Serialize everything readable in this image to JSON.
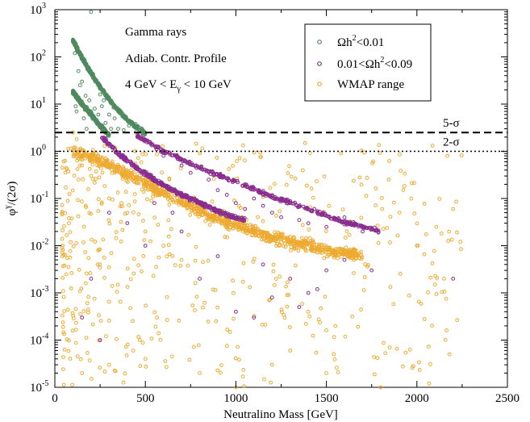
{
  "chart_data": {
    "type": "scatter",
    "xlabel": "Neutralino Mass  [GeV]",
    "ylabel": "φγ/(2σ)",
    "ylabel_base": "φ",
    "ylabel_sup": "γ",
    "ylabel_rest": "/(2σ)",
    "xlim": [
      0,
      2500
    ],
    "ylim": [
      1e-05,
      1000
    ],
    "yscale": "log",
    "x_ticks": [
      "0",
      "500",
      "1000",
      "1500",
      "2000",
      "2500"
    ],
    "x_tick_values": [
      0,
      500,
      1000,
      1500,
      2000,
      2500
    ],
    "y_ticks": [
      {
        "base": "10",
        "exp": "-5",
        "value": 1e-05
      },
      {
        "base": "10",
        "exp": "-4",
        "value": 0.0001
      },
      {
        "base": "10",
        "exp": "-3",
        "value": 0.001
      },
      {
        "base": "10",
        "exp": "-2",
        "value": 0.01
      },
      {
        "base": "10",
        "exp": "-1",
        "value": 0.1
      },
      {
        "base": "10",
        "exp": "0",
        "value": 1
      },
      {
        "base": "10",
        "exp": "1",
        "value": 10
      },
      {
        "base": "10",
        "exp": "2",
        "value": 100
      },
      {
        "base": "10",
        "exp": "3",
        "value": 1000
      }
    ],
    "grid": false,
    "legend_position": "top-right",
    "annotations": {
      "line1": "Gamma rays",
      "line2": "Adiab. Contr. Profile",
      "line3_pre": "4 GeV < E",
      "line3_sub": "γ",
      "line3_post": " < 10 GeV"
    },
    "reference_lines": [
      {
        "label": "5-σ",
        "y": 2.5,
        "style": "dashed"
      },
      {
        "label": "2-σ",
        "y": 1.0,
        "style": "dotted"
      }
    ],
    "series": [
      {
        "name": "Ωh2<0.01",
        "legend_pre": "Ωh",
        "legend_sup": "2",
        "legend_post": "<0.01",
        "color": "#4f8a5e",
        "bands": [
          {
            "x": [
              100,
              180,
              260,
              340,
              420,
              500
            ],
            "y": [
              220,
              60,
              20,
              8,
              4,
              2.4
            ]
          },
          {
            "x": [
              100,
              150,
              200,
              250,
              300
            ],
            "y": [
              18,
              10,
              6,
              3.5,
              2.2
            ]
          }
        ],
        "points": [
          [
            200,
            900
          ],
          [
            110,
            120
          ],
          [
            130,
            50
          ],
          [
            150,
            30
          ],
          [
            170,
            15
          ],
          [
            220,
            8
          ],
          [
            240,
            6
          ],
          [
            260,
            9
          ],
          [
            280,
            4
          ],
          [
            310,
            3
          ],
          [
            330,
            5
          ],
          [
            350,
            3
          ],
          [
            380,
            2.8
          ],
          [
            410,
            3.5
          ],
          [
            450,
            2.6
          ],
          [
            140,
            25
          ],
          [
            190,
            12
          ],
          [
            230,
            4
          ],
          [
            120,
            7
          ],
          [
            160,
            5
          ],
          [
            175,
            3
          ],
          [
            300,
            6
          ],
          [
            270,
            12
          ],
          [
            250,
            16
          ],
          [
            130,
            14
          ],
          [
            115,
            9
          ],
          [
            200,
            7
          ]
        ]
      },
      {
        "name": "0.01<Ωh2<0.09",
        "legend_pre": "0.01<Ωh",
        "legend_sup": "2",
        "legend_post": "<0.09",
        "color": "#8a2d8f",
        "bands": [
          {
            "x": [
              450,
              600,
              800,
              1000,
              1200,
              1400,
              1600,
              1800
            ],
            "y": [
              2.2,
              1.0,
              0.45,
              0.22,
              0.11,
              0.06,
              0.032,
              0.02
            ]
          },
          {
            "x": [
              260,
              350,
              450,
              550,
              650,
              800,
              950,
              1050
            ],
            "y": [
              2.0,
              0.9,
              0.45,
              0.25,
              0.15,
              0.08,
              0.045,
              0.035
            ]
          }
        ],
        "points": [
          [
            600,
            0.8
          ],
          [
            700,
            0.5
          ],
          [
            750,
            0.35
          ],
          [
            850,
            0.25
          ],
          [
            900,
            0.15
          ],
          [
            950,
            0.12
          ],
          [
            1000,
            0.08
          ],
          [
            1050,
            0.06
          ],
          [
            1100,
            0.1
          ],
          [
            1150,
            0.07
          ],
          [
            1200,
            0.05
          ],
          [
            1250,
            0.04
          ],
          [
            1300,
            0.08
          ],
          [
            1350,
            0.035
          ],
          [
            1400,
            0.03
          ],
          [
            1450,
            0.05
          ],
          [
            1500,
            0.025
          ],
          [
            1600,
            0.04
          ],
          [
            1700,
            0.02
          ],
          [
            1300,
            0.002
          ],
          [
            1350,
            0.0005
          ],
          [
            1400,
            0.001
          ],
          [
            1500,
            0.003
          ],
          [
            1450,
            0.0012
          ],
          [
            1200,
            0.0008
          ],
          [
            1100,
            0.0003
          ],
          [
            400,
            0.03
          ],
          [
            500,
            0.01
          ],
          [
            300,
            0.05
          ],
          [
            200,
            0.002
          ],
          [
            150,
            0.0003
          ],
          [
            250,
            0.0001
          ],
          [
            1600,
            0.005
          ],
          [
            1750,
            0.003
          ],
          [
            2200,
            0.002
          ],
          [
            800,
            0.002
          ],
          [
            900,
            0.006
          ],
          [
            1000,
            0.0004
          ],
          [
            700,
            0.02
          ],
          [
            650,
            0.05
          ],
          [
            550,
            0.08
          ],
          [
            1150,
            0.004
          ]
        ]
      },
      {
        "name": "WMAP range",
        "legend_pre": "WMAP range",
        "legend_sup": "",
        "legend_post": "",
        "color": "#eeaa30",
        "bands": [
          {
            "x": [
              100,
              200,
              300,
              400,
              500,
              600,
              700,
              800,
              900,
              1000,
              1100,
              1200,
              1300,
              1400,
              1500,
              1600,
              1700
            ],
            "y": [
              1.0,
              0.75,
              0.5,
              0.32,
              0.2,
              0.13,
              0.085,
              0.055,
              0.038,
              0.028,
              0.02,
              0.015,
              0.012,
              0.01,
              0.008,
              0.007,
              0.006
            ]
          }
        ],
        "scatter_region": {
          "x": [
            40,
            2250
          ],
          "y": [
            1e-05,
            1.5
          ]
        },
        "points": [
          [
            100,
            2.5
          ],
          [
            120,
            1.8
          ],
          [
            150,
            0.5
          ],
          [
            200,
            0.3
          ],
          [
            300,
            0.1
          ],
          [
            400,
            0.05
          ],
          [
            500,
            0.02
          ],
          [
            600,
            0.01
          ],
          [
            700,
            0.005
          ],
          [
            2200,
            0.06
          ],
          [
            2150,
            0.002
          ],
          [
            2000,
            0.01
          ],
          [
            2100,
            0.0015
          ],
          [
            1850,
            7e-05
          ],
          [
            2180,
            5e-05
          ],
          [
            1550,
            0.0002
          ],
          [
            1650,
            0.005
          ],
          [
            1400,
            0.0004
          ],
          [
            1300,
            6e-05
          ],
          [
            150,
            2e-05
          ],
          [
            300,
            3e-05
          ],
          [
            500,
            4e-05
          ],
          [
            800,
            2e-05
          ],
          [
            1000,
            1e-05
          ],
          [
            1200,
            3e-05
          ],
          [
            1500,
            2e-05
          ],
          [
            1800,
            1e-05
          ]
        ]
      }
    ]
  }
}
